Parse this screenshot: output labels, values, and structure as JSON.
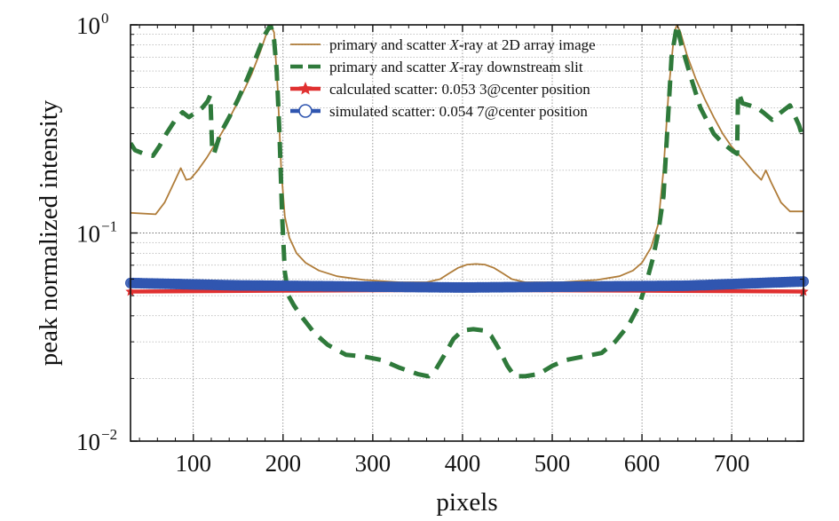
{
  "chart_data": {
    "type": "line",
    "xlabel": "pixels",
    "ylabel": "peak normalized intensity",
    "xlim": [
      30,
      780
    ],
    "ylim_log10": [
      -2,
      0
    ],
    "yscale": "log",
    "grid": true,
    "legend_position": "top-right",
    "x_ticks": [
      {
        "value": 100,
        "label": "100"
      },
      {
        "value": 200,
        "label": "200"
      },
      {
        "value": 300,
        "label": "300"
      },
      {
        "value": 400,
        "label": "400"
      },
      {
        "value": 500,
        "label": "500"
      },
      {
        "value": 600,
        "label": "600"
      },
      {
        "value": 700,
        "label": "700"
      }
    ],
    "y_ticks": [
      {
        "value": 0.01,
        "base": "10",
        "exp": "−2"
      },
      {
        "value": 0.1,
        "base": "10",
        "exp": "−1"
      },
      {
        "value": 1,
        "base": "10",
        "exp": "0"
      }
    ],
    "series": [
      {
        "name": "primary and scatter X-ray at 2D array image",
        "legend": {
          "pre": "primary and scatter ",
          "italic": "X",
          "post": "-ray at 2D array image"
        },
        "color": "#b07d3a",
        "style": "solid",
        "marker": "none",
        "points": [
          [
            30,
            0.125
          ],
          [
            58,
            0.123
          ],
          [
            68,
            0.14
          ],
          [
            80,
            0.18
          ],
          [
            86,
            0.205
          ],
          [
            92,
            0.18
          ],
          [
            97,
            0.182
          ],
          [
            105,
            0.2
          ],
          [
            115,
            0.23
          ],
          [
            125,
            0.27
          ],
          [
            135,
            0.32
          ],
          [
            145,
            0.39
          ],
          [
            155,
            0.47
          ],
          [
            165,
            0.58
          ],
          [
            175,
            0.75
          ],
          [
            182,
            0.92
          ],
          [
            186,
            1.0
          ],
          [
            190,
            0.92
          ],
          [
            194,
            0.5
          ],
          [
            198,
            0.2
          ],
          [
            202,
            0.12
          ],
          [
            207,
            0.095
          ],
          [
            215,
            0.08
          ],
          [
            225,
            0.072
          ],
          [
            240,
            0.066
          ],
          [
            260,
            0.062
          ],
          [
            290,
            0.0595
          ],
          [
            330,
            0.058
          ],
          [
            360,
            0.058
          ],
          [
            375,
            0.06
          ],
          [
            385,
            0.064
          ],
          [
            395,
            0.068
          ],
          [
            405,
            0.0705
          ],
          [
            415,
            0.071
          ],
          [
            425,
            0.0705
          ],
          [
            435,
            0.068
          ],
          [
            445,
            0.064
          ],
          [
            455,
            0.06
          ],
          [
            470,
            0.058
          ],
          [
            510,
            0.058
          ],
          [
            550,
            0.0595
          ],
          [
            575,
            0.062
          ],
          [
            590,
            0.066
          ],
          [
            600,
            0.072
          ],
          [
            610,
            0.085
          ],
          [
            618,
            0.11
          ],
          [
            624,
            0.2
          ],
          [
            630,
            0.5
          ],
          [
            636,
            0.92
          ],
          [
            639,
            1.0
          ],
          [
            643,
            0.92
          ],
          [
            650,
            0.72
          ],
          [
            660,
            0.55
          ],
          [
            670,
            0.44
          ],
          [
            680,
            0.36
          ],
          [
            690,
            0.3
          ],
          [
            700,
            0.26
          ],
          [
            715,
            0.22
          ],
          [
            725,
            0.195
          ],
          [
            733,
            0.18
          ],
          [
            738,
            0.2
          ],
          [
            744,
            0.175
          ],
          [
            755,
            0.14
          ],
          [
            765,
            0.127
          ],
          [
            780,
            0.127
          ]
        ]
      },
      {
        "name": "primary and scatter X-ray downstream slit",
        "legend": {
          "pre": "primary and scatter ",
          "italic": "X",
          "post": "-ray downstream slit"
        },
        "color": "#2f7a3b",
        "style": "dashed",
        "marker": "none",
        "points": [
          [
            30,
            0.27
          ],
          [
            35,
            0.25
          ],
          [
            45,
            0.24
          ],
          [
            55,
            0.235
          ],
          [
            62,
            0.26
          ],
          [
            70,
            0.3
          ],
          [
            80,
            0.35
          ],
          [
            88,
            0.38
          ],
          [
            95,
            0.36
          ],
          [
            103,
            0.38
          ],
          [
            110,
            0.4
          ],
          [
            116,
            0.43
          ],
          [
            119,
            0.46
          ],
          [
            121,
            0.25
          ],
          [
            123,
            0.24
          ],
          [
            130,
            0.3
          ],
          [
            140,
            0.36
          ],
          [
            150,
            0.44
          ],
          [
            160,
            0.55
          ],
          [
            170,
            0.7
          ],
          [
            180,
            0.9
          ],
          [
            186,
            1.0
          ],
          [
            190,
            0.85
          ],
          [
            193,
            0.6
          ],
          [
            196,
            0.3
          ],
          [
            199,
            0.12
          ],
          [
            202,
            0.065
          ],
          [
            206,
            0.05
          ],
          [
            212,
            0.045
          ],
          [
            220,
            0.04
          ],
          [
            235,
            0.033
          ],
          [
            250,
            0.029
          ],
          [
            270,
            0.026
          ],
          [
            290,
            0.0255
          ],
          [
            310,
            0.0245
          ],
          [
            330,
            0.0225
          ],
          [
            350,
            0.021
          ],
          [
            362,
            0.0205
          ],
          [
            370,
            0.022
          ],
          [
            380,
            0.026
          ],
          [
            390,
            0.031
          ],
          [
            400,
            0.034
          ],
          [
            412,
            0.0345
          ],
          [
            424,
            0.034
          ],
          [
            432,
            0.032
          ],
          [
            440,
            0.028
          ],
          [
            450,
            0.023
          ],
          [
            458,
            0.0205
          ],
          [
            470,
            0.0205
          ],
          [
            485,
            0.021
          ],
          [
            500,
            0.023
          ],
          [
            515,
            0.0245
          ],
          [
            535,
            0.0255
          ],
          [
            555,
            0.0265
          ],
          [
            570,
            0.03
          ],
          [
            585,
            0.036
          ],
          [
            597,
            0.045
          ],
          [
            605,
            0.058
          ],
          [
            612,
            0.075
          ],
          [
            618,
            0.1
          ],
          [
            624,
            0.15
          ],
          [
            628,
            0.3
          ],
          [
            633,
            0.7
          ],
          [
            639,
            1.0
          ],
          [
            644,
            0.8
          ],
          [
            655,
            0.55
          ],
          [
            665,
            0.4
          ],
          [
            680,
            0.3
          ],
          [
            690,
            0.27
          ],
          [
            700,
            0.25
          ],
          [
            706,
            0.24
          ],
          [
            707,
            0.45
          ],
          [
            708,
            0.47
          ],
          [
            712,
            0.42
          ],
          [
            720,
            0.41
          ],
          [
            728,
            0.4
          ],
          [
            735,
            0.38
          ],
          [
            745,
            0.35
          ],
          [
            755,
            0.38
          ],
          [
            765,
            0.41
          ],
          [
            775,
            0.33
          ],
          [
            780,
            0.28
          ]
        ]
      },
      {
        "name": "calculated scatter: 0.053 3@center position",
        "legend": {
          "pre": "calculated scatter: 0.053 3@center position",
          "italic": "",
          "post": ""
        },
        "color": "#e03030",
        "style": "solid",
        "marker": "star",
        "points": [
          [
            30,
            0.0523
          ],
          [
            200,
            0.0528
          ],
          [
            400,
            0.0533
          ],
          [
            600,
            0.0528
          ],
          [
            780,
            0.0523
          ]
        ]
      },
      {
        "name": "simulated scatter: 0.054 7@center position",
        "legend": {
          "pre": "simulated scatter: 0.054 7@center position",
          "italic": "",
          "post": ""
        },
        "color": "#3056b0",
        "style": "solid",
        "marker": "circle",
        "points": [
          [
            30,
            0.0575
          ],
          [
            150,
            0.056
          ],
          [
            400,
            0.0547
          ],
          [
            650,
            0.0558
          ],
          [
            780,
            0.0585
          ]
        ]
      }
    ]
  }
}
